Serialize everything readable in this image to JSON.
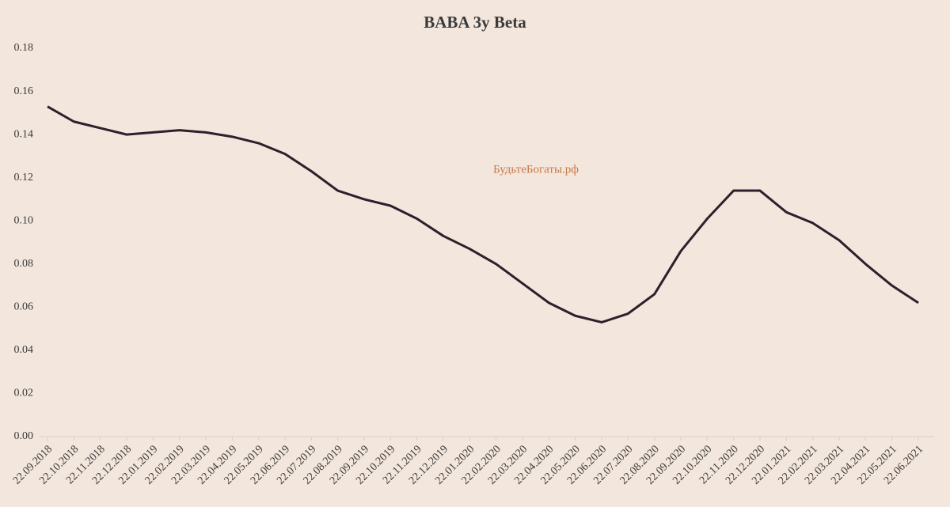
{
  "chart_data": {
    "type": "line",
    "title": "BABA 3y Beta",
    "annotation": "БудьтеБогаты.рф",
    "categories": [
      "22.09.2018",
      "22.10.2018",
      "22.11.2018",
      "22.12.2018",
      "22.01.2019",
      "22.02.2019",
      "22.03.2019",
      "22.04.2019",
      "22.05.2019",
      "22.06.2019",
      "22.07.2019",
      "22.08.2019",
      "22.09.2019",
      "22.10.2019",
      "22.11.2019",
      "22.12.2019",
      "22.01.2020",
      "22.02.2020",
      "22.03.2020",
      "22.04.2020",
      "22.05.2020",
      "22.06.2020",
      "22.07.2020",
      "22.08.2020",
      "22.09.2020",
      "22.10.2020",
      "22.11.2020",
      "22.12.2020",
      "22.01.2021",
      "22.02.2021",
      "22.03.2021",
      "22.04.2021",
      "22.05.2021",
      "22.06.2021"
    ],
    "series": [
      {
        "name": "BABA 3y Beta",
        "color": "#2e1f2d",
        "values": [
          0.153,
          0.146,
          0.143,
          0.14,
          0.141,
          0.142,
          0.141,
          0.139,
          0.136,
          0.131,
          0.123,
          0.114,
          0.11,
          0.107,
          0.101,
          0.093,
          0.087,
          0.08,
          0.071,
          0.062,
          0.056,
          0.053,
          0.057,
          0.066,
          0.086,
          0.101,
          0.114,
          0.114,
          0.104,
          0.099,
          0.091,
          0.08,
          0.07,
          0.062
        ]
      }
    ],
    "ylim": [
      0,
      0.18
    ],
    "yticks": [
      {
        "value": 0,
        "label": "0.00"
      },
      {
        "value": 0.02,
        "label": "0.02"
      },
      {
        "value": 0.04,
        "label": "0.04"
      },
      {
        "value": 0.06,
        "label": "0.06"
      },
      {
        "value": 0.08,
        "label": "0.08"
      },
      {
        "value": 0.1,
        "label": "0.10"
      },
      {
        "value": 0.12,
        "label": "0.12"
      },
      {
        "value": 0.14,
        "label": "0.14"
      },
      {
        "value": 0.16,
        "label": "0.16"
      },
      {
        "value": 0.18,
        "label": "0.18"
      }
    ],
    "grid": false
  }
}
